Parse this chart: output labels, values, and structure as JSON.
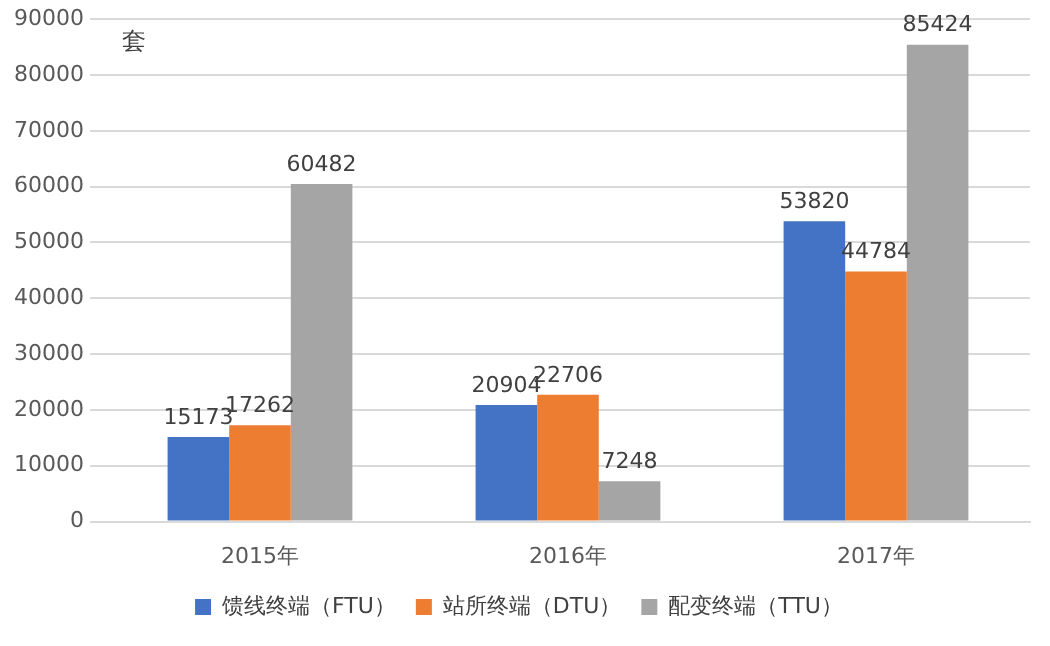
{
  "chart_data": {
    "type": "bar",
    "ylabel": "套",
    "categories": [
      "2015年",
      "2016年",
      "2017年"
    ],
    "series": [
      {
        "name": "馈线终端（FTU）",
        "color": "#4472c4",
        "values": [
          15173,
          20904,
          53820
        ]
      },
      {
        "name": "站所终端（DTU）",
        "color": "#ed7d31",
        "values": [
          17262,
          22706,
          44784
        ]
      },
      {
        "name": "配变终端（TTU）",
        "color": "#a5a5a5",
        "values": [
          60482,
          7248,
          85424
        ]
      }
    ],
    "ylim": [
      0,
      90000
    ],
    "yticks": [
      0,
      10000,
      20000,
      30000,
      40000,
      50000,
      60000,
      70000,
      80000,
      90000
    ],
    "grid": "y",
    "legend": "bottom",
    "data_labels": true
  }
}
